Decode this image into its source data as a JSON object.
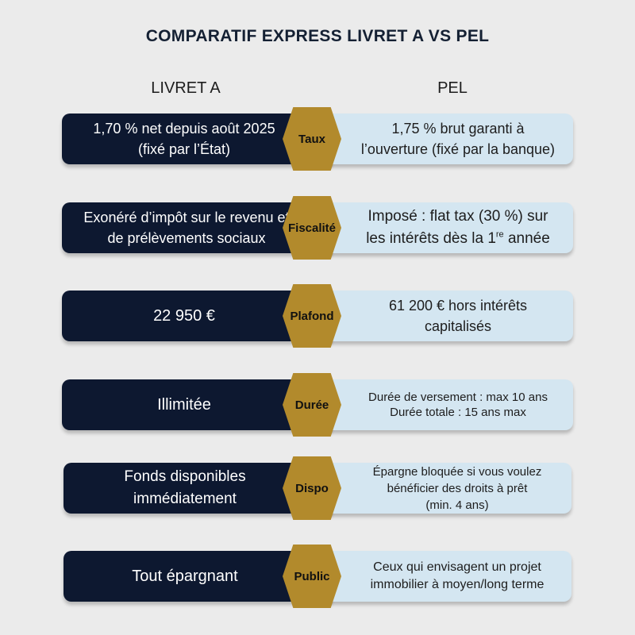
{
  "title": "COMPARATIF EXPRESS LIVRET A VS PEL",
  "columns": {
    "left": "LIVRET A",
    "right": "PEL"
  },
  "colors": {
    "navy": "#0d1830",
    "gold": "#b28a2c",
    "light_blue": "#d4e6f1",
    "background": "#ebebeb"
  },
  "rows": [
    {
      "label": "Taux",
      "livret_a": [
        "1,70 % net depuis août 2025",
        "(fixé par l’État)"
      ],
      "pel": [
        "1,75 % brut garanti à",
        "l’ouverture (fixé par la banque)"
      ]
    },
    {
      "label": "Fiscalité",
      "livret_a": [
        "Exonéré d’impôt sur le revenu et",
        "de prélèvements sociaux"
      ],
      "pel": [
        "Imposé : flat tax (30 %) sur",
        "les intérêts dès la 1",
        "re",
        " année"
      ]
    },
    {
      "label": "Plafond",
      "livret_a": [
        "22 950 €"
      ],
      "pel": [
        "61 200 € hors intérêts",
        "capitalisés"
      ]
    },
    {
      "label": "Durée",
      "livret_a": [
        "Illimitée"
      ],
      "pel": [
        "Durée de versement : max 10 ans",
        "Durée totale : 15 ans max"
      ]
    },
    {
      "label": "Dispo",
      "livret_a": [
        "Fonds disponibles",
        "immédiatement"
      ],
      "pel": [
        "Épargne bloquée si vous voulez",
        "bénéficier des droits à prêt",
        "(min. 4 ans)"
      ]
    },
    {
      "label": "Public",
      "livret_a": [
        "Tout épargnant"
      ],
      "pel": [
        "Ceux qui envisagent un projet",
        "immobilier à moyen/long terme"
      ]
    }
  ]
}
